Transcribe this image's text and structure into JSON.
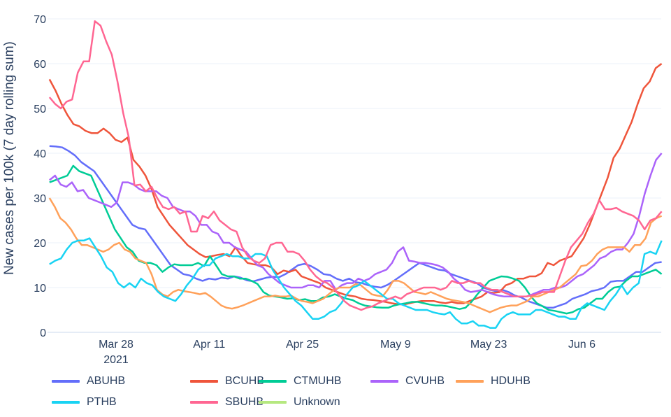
{
  "chart_data": {
    "type": "line",
    "title": "",
    "xlabel": "",
    "ylabel": "New cases per 100k (7 day rolling sum)",
    "ylim": [
      0,
      70
    ],
    "yticks": [
      0,
      10,
      20,
      30,
      40,
      50,
      60,
      70
    ],
    "xticks": [
      {
        "label": "Mar 28",
        "sub": "2021",
        "day": 10
      },
      {
        "label": "Apr 11",
        "sub": "",
        "day": 24
      },
      {
        "label": "Apr 25",
        "sub": "",
        "day": 38
      },
      {
        "label": "May 9",
        "sub": "",
        "day": 52
      },
      {
        "label": "May 23",
        "sub": "",
        "day": 66
      },
      {
        "label": "Jun 6",
        "sub": "",
        "day": 80
      }
    ],
    "x_start": "2021-03-18",
    "x_end": "2021-06-18",
    "grid": true,
    "legend_position": "bottom",
    "series": [
      {
        "name": "ABUHB",
        "color": "#636efa",
        "values": [
          41.6,
          41.5,
          41.3,
          40.5,
          39.5,
          38,
          37,
          36,
          34,
          32,
          30,
          28,
          26,
          24,
          23.3,
          23,
          21,
          19,
          17,
          15,
          14,
          13,
          12.7,
          12,
          11.5,
          12,
          11.8,
          12.2,
          12,
          12.5,
          12.2,
          11.6,
          11.4,
          11.8,
          12.2,
          12.4,
          12.3,
          13,
          14,
          15,
          15.3,
          14.8,
          14,
          13,
          12.8,
          12,
          11.5,
          12,
          11.2,
          11,
          10.5,
          10.2,
          10,
          10.6,
          11.5,
          12.5,
          13.5,
          14.5,
          15.5,
          15,
          14.5,
          14,
          13.8,
          13,
          12.5,
          12,
          11.5,
          11,
          10,
          9.5,
          9.2,
          9.5,
          9,
          8.2,
          7.8,
          7,
          6.5,
          6,
          5.5,
          5.5,
          6,
          6.5,
          7.5,
          8,
          8.5,
          9.2,
          9.5,
          10,
          11.3,
          11.5,
          11.5,
          12.5,
          13.5,
          13.5,
          14.5,
          15.5,
          15.7
        ]
      },
      {
        "name": "BCUHB",
        "color": "#ef553b",
        "values": [
          56.5,
          54,
          51,
          48.5,
          46.5,
          46,
          45,
          44.5,
          44.5,
          45.5,
          44.5,
          43,
          42.5,
          43.5,
          38.5,
          37,
          35,
          32,
          28,
          26,
          24,
          22.5,
          21,
          19.5,
          18.5,
          17.5,
          16.8,
          17,
          17.3,
          17.5,
          17,
          19,
          17,
          15.5,
          15.2,
          15,
          15,
          14.5,
          13,
          13.8,
          13.5,
          14,
          12.5,
          12,
          11.5,
          11,
          10,
          9.5,
          9,
          8.5,
          8.2,
          8,
          7.5,
          7.3,
          7.2,
          7,
          6.8,
          6.5,
          6.3,
          6.2,
          6.5,
          6.8,
          7,
          7,
          7,
          6.7,
          6.5,
          6.8,
          6.5,
          6.5,
          7,
          7.5,
          8,
          9,
          8.8,
          9,
          10.5,
          11,
          12,
          12,
          12.5,
          12.5,
          13.2,
          15.5,
          15,
          16,
          16.5,
          17,
          19,
          21,
          24,
          27.5,
          31,
          34.5,
          39,
          41,
          44,
          47,
          51,
          54.5,
          56,
          59,
          60
        ]
      },
      {
        "name": "CTMUHB",
        "color": "#00cc96",
        "values": [
          33.5,
          34,
          34.5,
          35,
          37.2,
          36,
          35.5,
          35,
          32,
          29,
          26,
          23,
          21,
          19,
          18,
          16,
          15.5,
          15.5,
          15,
          13.5,
          14.5,
          15.2,
          15,
          15,
          15,
          15.5,
          14.8,
          17,
          15,
          13,
          12.5,
          12.5,
          12,
          12,
          11.5,
          10.8,
          9,
          8.2,
          8,
          7.8,
          7.5,
          7.6,
          7.2,
          7.4,
          7,
          7,
          7.8,
          8,
          8.5,
          8,
          7.5,
          7.2,
          6.5,
          6,
          5.8,
          5.6,
          5.5,
          5.5,
          6,
          6.3,
          6.5,
          6.8,
          6.8,
          6.5,
          6.2,
          6,
          6,
          5.8,
          5.5,
          5.2,
          5.5,
          6.8,
          8.5,
          10,
          11.5,
          12,
          12.5,
          12.4,
          12,
          11.5,
          10,
          8,
          6.5,
          5.8,
          5,
          4.8,
          4.5,
          4.2,
          4.5,
          5.2,
          5.5,
          6.5,
          7.5,
          7.5,
          9,
          10,
          10.2,
          11.5,
          12.5,
          12.5,
          13,
          13.5,
          14,
          13
        ]
      },
      {
        "name": "CVUHB",
        "color": "#ab63fa",
        "values": [
          34,
          35,
          33,
          32.5,
          33.5,
          31.5,
          31.8,
          30,
          29.5,
          29,
          28.5,
          28,
          29,
          33.5,
          33.5,
          33,
          32,
          31.5,
          31.5,
          31.5,
          30.5,
          30,
          28,
          27.5,
          27,
          27,
          26,
          24,
          24,
          22.5,
          22,
          20,
          20,
          19,
          18.5,
          18,
          16.5,
          15,
          14.5,
          13,
          12,
          11,
          10.5,
          10,
          10,
          10,
          10.5,
          10.5,
          10,
          11.5,
          11.5,
          9.5,
          10.5,
          11,
          11,
          12,
          11.5,
          12,
          13,
          13.5,
          14,
          15.5,
          18,
          19,
          16,
          15.8,
          15.5,
          15.5,
          15.3,
          15,
          14.5,
          13.5,
          12,
          11,
          9.5,
          9,
          9.2,
          9.5,
          9,
          8.5,
          8.2,
          8,
          8,
          8,
          8,
          8,
          8.5,
          9,
          9.5,
          9.5,
          10,
          10,
          10.5,
          11.5,
          12.5,
          13,
          14,
          15,
          16.5,
          17,
          18,
          18.5,
          18.5,
          20,
          22,
          26,
          31,
          35,
          38.5,
          40
        ]
      },
      {
        "name": "HDUHB",
        "color": "#ffa15a",
        "values": [
          30,
          28,
          25.5,
          24.5,
          23,
          21,
          19.5,
          19.5,
          19,
          18.5,
          18,
          18.5,
          19.5,
          20,
          18.5,
          18,
          16.5,
          16,
          15.5,
          13,
          9.5,
          8.5,
          8,
          9,
          9.5,
          9.2,
          9,
          8.8,
          8.5,
          8.8,
          8,
          7,
          6,
          5.5,
          5.3,
          5.6,
          6,
          6.5,
          7,
          7.5,
          8,
          8,
          8.2,
          8,
          8,
          8.2,
          7.5,
          7,
          6.8,
          6.5,
          7,
          7.5,
          8.5,
          9.5,
          10,
          10,
          10,
          10.8,
          10.5,
          9.5,
          8.5,
          8.2,
          8,
          9.5,
          11.5,
          11.5,
          11,
          10,
          9,
          8.8,
          8.5,
          9,
          8.5,
          8,
          7.5,
          7.2,
          7,
          6.8,
          6.5,
          6,
          5.5,
          5,
          4.5,
          5,
          5.5,
          5.8,
          6,
          6,
          6.5,
          7,
          8,
          8,
          8.5,
          9,
          9.5,
          10,
          11,
          12,
          13,
          14.8,
          15,
          16,
          17.5,
          18.5,
          19,
          19,
          19,
          19,
          18,
          19.5,
          19.5,
          21,
          24.5,
          25.5,
          26
        ]
      },
      {
        "name": "PTHB",
        "color": "#19d3f3",
        "values": [
          15.2,
          16,
          16.5,
          18.5,
          20,
          20.5,
          20.5,
          21,
          19,
          17,
          14.5,
          13.5,
          11,
          10,
          11,
          10,
          12,
          11,
          10.5,
          9,
          8,
          7.5,
          7,
          8.5,
          10.5,
          12,
          14,
          15,
          15,
          16.5,
          17,
          17.5,
          17,
          17,
          16.5,
          16.5,
          17.5,
          17.5,
          17,
          14,
          12,
          10,
          8.5,
          7,
          6,
          4.5,
          3,
          3,
          3.5,
          4.5,
          5,
          6.5,
          8.5,
          10,
          10.5,
          11.5,
          10.5,
          9.5,
          8.5,
          7.5,
          7.5,
          6.5,
          6,
          5.5,
          5,
          5,
          5,
          4.5,
          4.2,
          4,
          4.5,
          3,
          2,
          2,
          2.5,
          1.5,
          1.5,
          1,
          1,
          3,
          4,
          4.5,
          4,
          4,
          4,
          5,
          5,
          4.5,
          4,
          3.5,
          3.5,
          3,
          3,
          5.5,
          6.5,
          6,
          5.5,
          5,
          7,
          8.5,
          10.5,
          8.5,
          10,
          11,
          17.5,
          18,
          17.5,
          20.5
        ]
      },
      {
        "name": "SBUHB",
        "color": "#ff6692",
        "values": [
          52.5,
          51,
          50,
          51.5,
          52,
          58,
          60.5,
          60.5,
          69.5,
          68.5,
          65,
          62,
          56,
          49,
          43.5,
          32.8,
          33,
          31.5,
          32.5,
          30,
          28,
          27.5,
          28,
          26.5,
          27,
          22.5,
          22.5,
          26,
          25.5,
          27,
          25,
          24,
          23,
          22.5,
          19,
          17,
          16,
          15.5,
          16.5,
          19.5,
          20,
          20,
          18,
          18,
          17.5,
          16,
          14,
          12.5,
          11.5,
          11,
          10,
          8.5,
          7,
          6,
          5.5,
          5,
          5.5,
          5.8,
          6.5,
          7,
          7.5,
          8,
          7.5,
          8.5,
          9,
          9.5,
          10,
          10,
          10,
          9.5,
          10,
          11.5,
          11,
          11,
          11.5,
          11,
          11,
          10,
          9.5,
          9.5,
          9,
          8.5,
          8,
          8,
          8,
          8.2,
          8.5,
          9,
          9,
          9,
          12.5,
          16,
          19,
          20.5,
          22,
          24.5,
          26.5,
          29.5,
          27.5,
          27.5,
          27.8,
          27,
          26.5,
          26,
          25,
          23,
          25,
          25.5,
          27
        ]
      },
      {
        "name": "Unknown",
        "color": "#b6e880",
        "values": []
      }
    ]
  },
  "legend": {
    "items": [
      {
        "label": "ABUHB",
        "color": "#636efa"
      },
      {
        "label": "BCUHB",
        "color": "#ef553b"
      },
      {
        "label": "CTMUHB",
        "color": "#00cc96"
      },
      {
        "label": "CVUHB",
        "color": "#ab63fa"
      },
      {
        "label": "HDUHB",
        "color": "#ffa15a"
      },
      {
        "label": "PTHB",
        "color": "#19d3f3"
      },
      {
        "label": "SBUHB",
        "color": "#ff6692"
      },
      {
        "label": "Unknown",
        "color": "#b6e880"
      }
    ]
  }
}
